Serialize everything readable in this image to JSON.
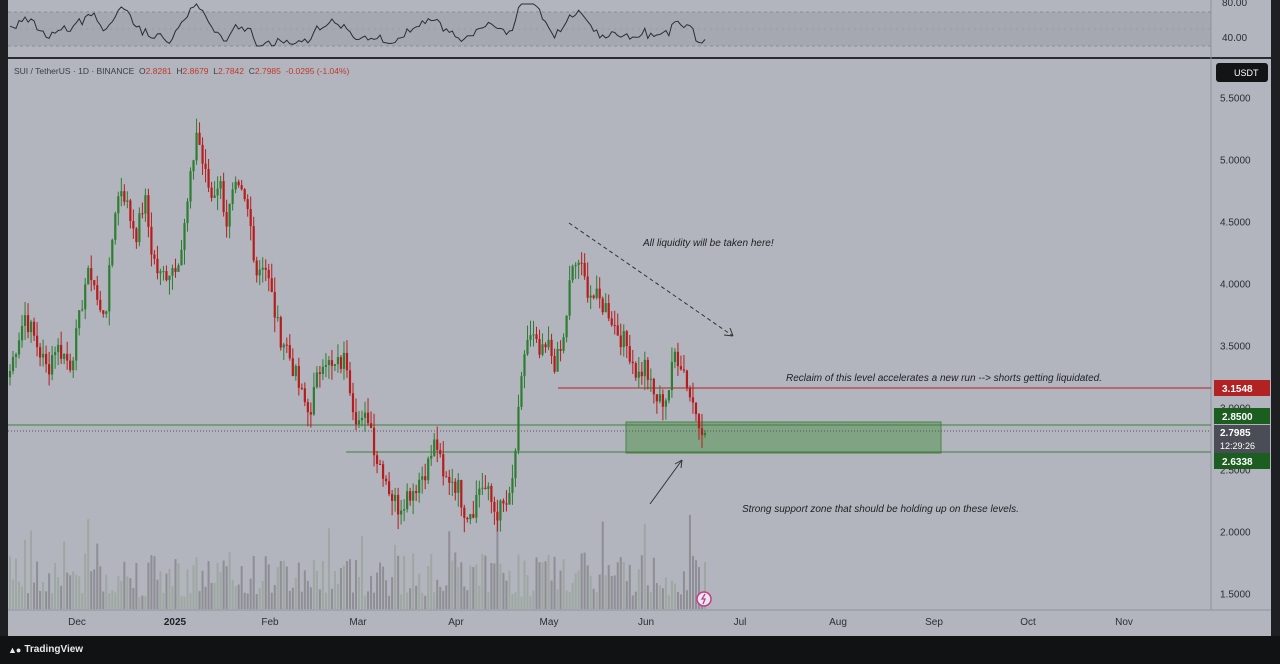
{
  "header": {
    "symbol": "SUI / TetherUS · 1D · BINANCE",
    "open_label": "O",
    "open": "2.8281",
    "high_label": "H",
    "high": "2.8679",
    "low_label": "L",
    "low": "2.7842",
    "close_label": "C",
    "close": "2.7985",
    "change": "-0.0295 (-1.04%)"
  },
  "currency_badge": "USDT",
  "price_labels": {
    "resistance": "3.1548",
    "zone_top": "2.8500",
    "last": "2.7985",
    "countdown": "12:29:26",
    "zone_bottom": "2.6338"
  },
  "annotations": {
    "liquidity": "All liquidity will be taken here!",
    "reclaim": "Reclaim of this level accelerates a new run --> shorts getting liquidated.",
    "support": "Strong support zone that should be holding up on these levels."
  },
  "footer": {
    "brand": "TradingView"
  },
  "colors": {
    "up": "#2e7d32",
    "down": "#b71c1c",
    "resistance": "#b22222",
    "zone": "#6f9f6f",
    "bg": "#b2b5be"
  },
  "chart_data": {
    "type": "candlestick",
    "y_ticks": [
      "5.5000",
      "5.0000",
      "4.5000",
      "4.0000",
      "3.5000",
      "3.0000",
      "2.5000",
      "2.0000",
      "1.5000"
    ],
    "y_tick_values": [
      5.5,
      5.0,
      4.5,
      4.0,
      3.5,
      3.0,
      2.5,
      2.0,
      1.5
    ],
    "x_ticks": [
      "Dec",
      "2025",
      "Feb",
      "Mar",
      "Apr",
      "May",
      "Jun",
      "Jul",
      "Aug",
      "Sep",
      "Oct",
      "Nov"
    ],
    "rsi": {
      "ticks": [
        "80.00",
        "40.00"
      ],
      "tick_values": [
        80,
        40
      ]
    },
    "close_path": [
      3.3,
      3.55,
      3.75,
      3.6,
      3.45,
      3.3,
      3.5,
      3.45,
      3.35,
      3.6,
      4.0,
      4.1,
      3.75,
      3.85,
      4.6,
      4.8,
      4.55,
      4.4,
      4.7,
      4.25,
      4.05,
      4.1,
      4.15,
      4.3,
      4.75,
      5.25,
      4.9,
      4.7,
      4.85,
      4.5,
      4.75,
      4.7,
      4.55,
      4.1,
      4.2,
      3.9,
      3.6,
      3.5,
      3.3,
      3.1,
      2.95,
      3.2,
      3.45,
      3.3,
      3.35,
      3.4,
      3.0,
      2.85,
      2.95,
      2.6,
      2.5,
      2.3,
      2.2,
      2.3,
      2.35,
      2.45,
      2.55,
      2.75,
      2.4,
      2.45,
      2.35,
      2.15,
      2.2,
      2.4,
      2.3,
      2.15,
      2.2,
      2.25,
      2.9,
      3.55,
      3.55,
      3.4,
      3.5,
      3.35,
      3.5,
      4.05,
      4.2,
      4.0,
      3.9,
      3.85,
      3.8,
      3.65,
      3.55,
      3.45,
      3.25,
      3.35,
      3.1,
      3.05,
      3.1,
      3.45,
      3.35,
      3.1,
      2.95,
      2.8
    ],
    "resistance": 3.1548,
    "zone": [
      2.6338,
      2.85
    ],
    "last": 2.7985
  }
}
